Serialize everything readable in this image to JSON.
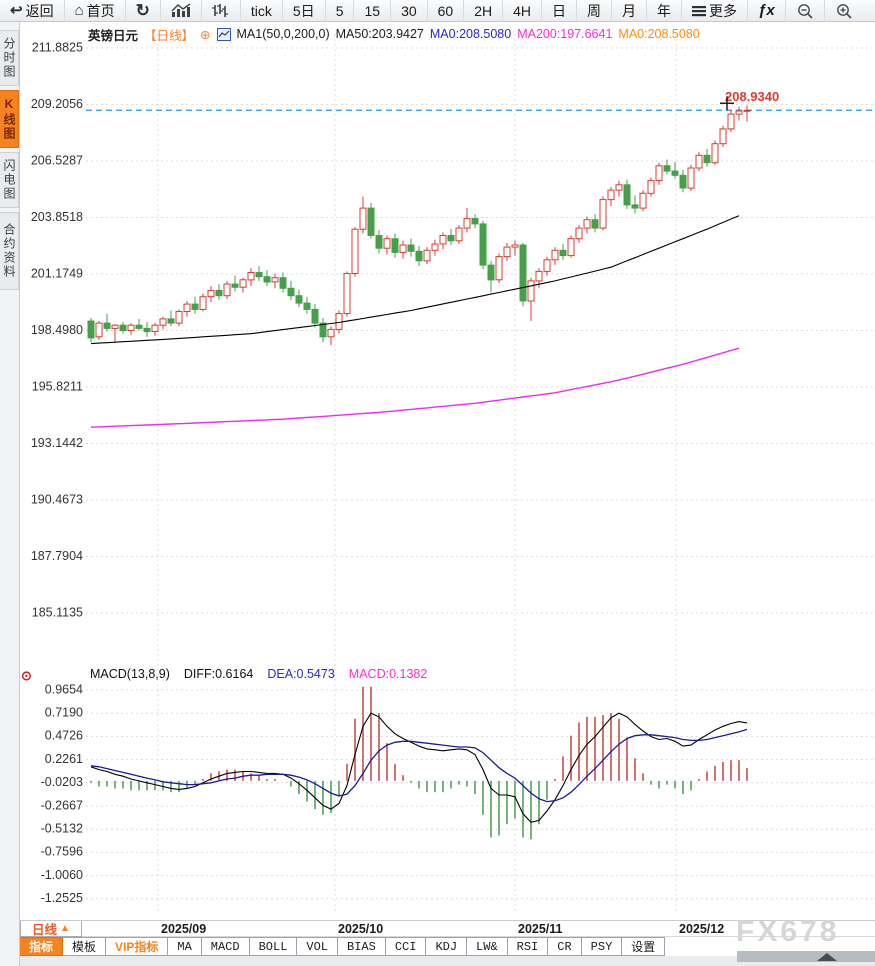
{
  "toolbar": {
    "items": [
      {
        "name": "back",
        "icon": "back-arrow",
        "label": "返回"
      },
      {
        "name": "home",
        "icon": "home",
        "label": "首页"
      },
      {
        "name": "refresh",
        "icon": "refresh",
        "label": ""
      },
      {
        "name": "trend-chart",
        "icon": "bar-chart",
        "label": ""
      },
      {
        "name": "kline-bars",
        "icon": "ohlc-bars",
        "label": ""
      },
      {
        "name": "tick",
        "icon": "",
        "label": "tick"
      },
      {
        "name": "5d",
        "icon": "",
        "label": "5日"
      },
      {
        "name": "m5",
        "icon": "",
        "label": "5"
      },
      {
        "name": "m15",
        "icon": "",
        "label": "15"
      },
      {
        "name": "m30",
        "icon": "",
        "label": "30"
      },
      {
        "name": "m60",
        "icon": "",
        "label": "60"
      },
      {
        "name": "h2",
        "icon": "",
        "label": "2H"
      },
      {
        "name": "h4",
        "icon": "",
        "label": "4H"
      },
      {
        "name": "day",
        "icon": "",
        "label": "日"
      },
      {
        "name": "week",
        "icon": "",
        "label": "周"
      },
      {
        "name": "month",
        "icon": "",
        "label": "月"
      },
      {
        "name": "year",
        "icon": "",
        "label": "年"
      },
      {
        "name": "more",
        "icon": "menu",
        "label": "更多"
      },
      {
        "name": "fx",
        "icon": "fx",
        "label": "fx"
      },
      {
        "name": "zoom-out",
        "icon": "zoom-out",
        "label": ""
      },
      {
        "name": "zoom-in",
        "icon": "zoom-in",
        "label": ""
      }
    ]
  },
  "sidebar": {
    "items": [
      {
        "label": "分时图",
        "active": false
      },
      {
        "label": "K线图",
        "active": true
      },
      {
        "label": "闪电图",
        "active": false
      },
      {
        "label": "合约资料",
        "active": false
      }
    ]
  },
  "chart_header": {
    "symbol": "英镑日元",
    "period_tag": "【日线】",
    "plus": "⊕",
    "ma_settings": "MA1(50,0,200,0)",
    "ma50": "MA50:203.9427",
    "ma0_blue": "MA0:208.5080",
    "ma200": "MA200:197.6641",
    "ma0_orange": "MA0:208.5080"
  },
  "macd_header": {
    "title": "MACD(13,8,9)",
    "diff": "DIFF:0.6164",
    "dea": "DEA:0.5473",
    "macd": "MACD:0.1382"
  },
  "bottom": {
    "period_label": "日线",
    "period_arrow": "▲",
    "watermark": "FX678",
    "months": [
      "2025/09",
      "2025/10",
      "2025/11",
      "2025/12"
    ],
    "tabs": [
      {
        "label": "指标",
        "variant": "active"
      },
      {
        "label": "模板",
        "variant": "plain"
      },
      {
        "label": "VIP指标",
        "variant": "vip"
      },
      {
        "label": "MA",
        "variant": "box"
      },
      {
        "label": "MACD",
        "variant": "box"
      },
      {
        "label": "BOLL",
        "variant": "box"
      },
      {
        "label": "VOL",
        "variant": "box"
      },
      {
        "label": "BIAS",
        "variant": "box"
      },
      {
        "label": "CCI",
        "variant": "box"
      },
      {
        "label": "KDJ",
        "variant": "box"
      },
      {
        "label": "LW&",
        "variant": "box"
      },
      {
        "label": "RSI",
        "variant": "box"
      },
      {
        "label": "CR",
        "variant": "box"
      },
      {
        "label": "PSY",
        "variant": "box"
      },
      {
        "label": "设置",
        "variant": "box"
      }
    ]
  },
  "colors": {
    "up": "#dd3b32",
    "down": "#44a049",
    "ma50": "#000000",
    "ma200": "#ee2bee",
    "diff": "#000000",
    "dea": "#1c1c96",
    "hist_up": "#c4514a",
    "hist_down": "#55a05a",
    "grid": "#dcdcdc",
    "last_price_line": "#2196f3",
    "last_price_text": "#e13a30",
    "accent": "#f5831f"
  },
  "chart_data": {
    "type": "candlestick",
    "title": "英镑日元 日线 (GBP/JPY daily) with MA50/MA200 and MACD(13,8,9)",
    "price_axis_labels": [
      "211.8825",
      "209.2056",
      "206.5287",
      "203.8518",
      "201.1749",
      "198.4980",
      "195.8211",
      "193.1442",
      "190.4673",
      "187.7904",
      "185.1135"
    ],
    "macd_axis_labels": [
      "0.9654",
      "0.7190",
      "0.4726",
      "0.2261",
      "-0.0203",
      "-0.2667",
      "-0.5132",
      "-0.7596",
      "-1.0060",
      "-1.2525"
    ],
    "x_months": [
      "2025/09",
      "2025/10",
      "2025/11",
      "2025/12"
    ],
    "last_price": 208.934,
    "last_price_label": "208.9340",
    "ma50_last": 203.9427,
    "ma200_last": 197.6641,
    "diff_last": 0.6164,
    "dea_last": 0.5473,
    "macd_hist_last": 0.1382,
    "candles": [
      [
        198.95,
        199.1,
        197.95,
        198.15
      ],
      [
        198.2,
        198.95,
        198.05,
        198.85
      ],
      [
        198.85,
        199.3,
        198.45,
        198.6
      ],
      [
        198.6,
        198.8,
        197.95,
        198.75
      ],
      [
        198.75,
        198.9,
        198.35,
        198.5
      ],
      [
        198.5,
        198.85,
        198.3,
        198.75
      ],
      [
        198.75,
        199.05,
        198.5,
        198.6
      ],
      [
        198.6,
        198.9,
        198.2,
        198.45
      ],
      [
        198.45,
        198.85,
        198.25,
        198.75
      ],
      [
        198.75,
        199.15,
        198.55,
        199.05
      ],
      [
        199.05,
        199.45,
        198.7,
        198.85
      ],
      [
        198.85,
        199.5,
        198.7,
        199.4
      ],
      [
        199.4,
        199.9,
        199.15,
        199.75
      ],
      [
        199.75,
        200.1,
        199.3,
        199.5
      ],
      [
        199.5,
        200.25,
        199.4,
        200.1
      ],
      [
        200.1,
        200.6,
        199.85,
        200.4
      ],
      [
        200.4,
        200.7,
        199.95,
        200.15
      ],
      [
        200.15,
        200.85,
        200.0,
        200.7
      ],
      [
        200.7,
        201.1,
        200.35,
        200.55
      ],
      [
        200.55,
        201.0,
        200.3,
        200.9
      ],
      [
        200.9,
        201.45,
        200.6,
        201.25
      ],
      [
        201.25,
        201.55,
        200.85,
        201.05
      ],
      [
        201.05,
        201.35,
        200.6,
        200.8
      ],
      [
        200.8,
        201.2,
        200.5,
        201.0
      ],
      [
        201.0,
        201.25,
        200.3,
        200.5
      ],
      [
        200.5,
        200.85,
        199.95,
        200.15
      ],
      [
        200.15,
        200.45,
        199.6,
        199.8
      ],
      [
        199.8,
        200.1,
        199.3,
        199.5
      ],
      [
        199.5,
        199.75,
        198.65,
        198.85
      ],
      [
        198.85,
        199.1,
        197.95,
        198.2
      ],
      [
        198.2,
        198.7,
        197.8,
        198.55
      ],
      [
        198.55,
        199.45,
        198.35,
        199.3
      ],
      [
        199.3,
        201.3,
        199.15,
        201.2
      ],
      [
        201.2,
        203.4,
        201.05,
        203.3
      ],
      [
        203.3,
        204.85,
        203.1,
        204.3
      ],
      [
        204.3,
        204.55,
        202.85,
        203.0
      ],
      [
        203.0,
        203.25,
        202.15,
        202.4
      ],
      [
        202.4,
        203.0,
        202.1,
        202.85
      ],
      [
        202.85,
        203.1,
        201.95,
        202.2
      ],
      [
        202.2,
        202.75,
        201.9,
        202.55
      ],
      [
        202.55,
        202.85,
        202.0,
        202.25
      ],
      [
        202.25,
        202.5,
        201.55,
        201.8
      ],
      [
        201.8,
        202.45,
        201.65,
        202.3
      ],
      [
        202.3,
        202.8,
        202.05,
        202.6
      ],
      [
        202.6,
        203.15,
        202.35,
        203.0
      ],
      [
        203.0,
        203.3,
        202.55,
        202.75
      ],
      [
        202.75,
        203.5,
        202.6,
        203.35
      ],
      [
        203.35,
        204.3,
        203.15,
        203.8
      ],
      [
        203.8,
        204.0,
        203.35,
        203.55
      ],
      [
        203.55,
        203.7,
        201.4,
        201.6
      ],
      [
        201.6,
        201.8,
        200.3,
        200.9
      ],
      [
        200.9,
        202.15,
        200.75,
        202.0
      ],
      [
        202.0,
        202.65,
        201.8,
        202.45
      ],
      [
        202.45,
        202.75,
        202.05,
        202.55
      ],
      [
        202.55,
        202.65,
        199.65,
        199.9
      ],
      [
        199.9,
        201.0,
        198.95,
        200.85
      ],
      [
        200.85,
        201.45,
        200.5,
        201.3
      ],
      [
        201.3,
        202.0,
        201.1,
        201.85
      ],
      [
        201.85,
        202.45,
        201.6,
        202.3
      ],
      [
        202.3,
        202.6,
        201.85,
        202.05
      ],
      [
        202.05,
        203.0,
        201.95,
        202.85
      ],
      [
        202.85,
        203.5,
        202.65,
        203.35
      ],
      [
        203.35,
        203.9,
        203.1,
        203.75
      ],
      [
        203.75,
        204.0,
        203.15,
        203.35
      ],
      [
        203.35,
        204.85,
        203.25,
        204.7
      ],
      [
        204.7,
        205.3,
        204.4,
        205.15
      ],
      [
        205.15,
        205.6,
        204.85,
        205.4
      ],
      [
        205.4,
        205.65,
        204.25,
        204.45
      ],
      [
        204.45,
        204.9,
        204.05,
        204.3
      ],
      [
        204.3,
        205.15,
        204.15,
        205.0
      ],
      [
        205.0,
        205.75,
        204.85,
        205.6
      ],
      [
        205.6,
        206.45,
        205.4,
        206.3
      ],
      [
        206.3,
        206.6,
        205.9,
        206.05
      ],
      [
        206.05,
        206.5,
        205.7,
        205.85
      ],
      [
        205.85,
        206.1,
        205.05,
        205.25
      ],
      [
        205.25,
        206.35,
        205.1,
        206.2
      ],
      [
        206.2,
        206.95,
        206.05,
        206.8
      ],
      [
        206.8,
        207.1,
        206.25,
        206.45
      ],
      [
        206.45,
        207.5,
        206.35,
        207.35
      ],
      [
        207.35,
        208.2,
        207.2,
        208.05
      ],
      [
        208.05,
        208.95,
        207.9,
        208.75
      ],
      [
        208.75,
        209.1,
        208.45,
        208.9
      ],
      [
        208.9,
        209.15,
        208.4,
        208.93
      ]
    ],
    "ma50_anchors": [
      [
        0,
        197.88
      ],
      [
        10,
        198.1
      ],
      [
        20,
        198.35
      ],
      [
        31,
        198.88
      ],
      [
        40,
        199.45
      ],
      [
        51,
        200.3
      ],
      [
        58,
        200.85
      ],
      [
        65,
        201.5
      ],
      [
        72,
        202.55
      ],
      [
        77,
        203.3
      ],
      [
        81,
        203.94
      ]
    ],
    "ma200_anchors": [
      [
        0,
        193.92
      ],
      [
        12,
        194.1
      ],
      [
        24,
        194.3
      ],
      [
        36,
        194.62
      ],
      [
        48,
        195.05
      ],
      [
        58,
        195.55
      ],
      [
        66,
        196.15
      ],
      [
        74,
        196.9
      ],
      [
        81,
        197.66
      ]
    ],
    "diff": [
      0.15,
      0.12,
      0.1,
      0.07,
      0.05,
      0.02,
      0.0,
      -0.02,
      -0.04,
      -0.06,
      -0.08,
      -0.09,
      -0.08,
      -0.06,
      -0.02,
      0.02,
      0.05,
      0.08,
      0.09,
      0.1,
      0.1,
      0.09,
      0.08,
      0.08,
      0.07,
      0.03,
      -0.03,
      -0.1,
      -0.18,
      -0.26,
      -0.3,
      -0.24,
      -0.05,
      0.28,
      0.58,
      0.72,
      0.68,
      0.58,
      0.5,
      0.45,
      0.41,
      0.37,
      0.34,
      0.33,
      0.32,
      0.33,
      0.34,
      0.33,
      0.28,
      0.12,
      -0.08,
      -0.15,
      -0.15,
      -0.17,
      -0.35,
      -0.44,
      -0.42,
      -0.32,
      -0.2,
      -0.05,
      0.12,
      0.27,
      0.39,
      0.47,
      0.57,
      0.67,
      0.72,
      0.68,
      0.6,
      0.53,
      0.47,
      0.44,
      0.45,
      0.42,
      0.37,
      0.38,
      0.44,
      0.49,
      0.54,
      0.58,
      0.61,
      0.63,
      0.6164
    ],
    "dea": [
      0.16,
      0.15,
      0.13,
      0.11,
      0.09,
      0.07,
      0.05,
      0.03,
      0.01,
      -0.01,
      -0.02,
      -0.03,
      -0.04,
      -0.04,
      -0.03,
      -0.02,
      0.0,
      0.02,
      0.03,
      0.05,
      0.06,
      0.06,
      0.07,
      0.07,
      0.07,
      0.06,
      0.04,
      0.01,
      -0.03,
      -0.08,
      -0.13,
      -0.16,
      -0.14,
      -0.05,
      0.08,
      0.22,
      0.32,
      0.38,
      0.41,
      0.42,
      0.42,
      0.41,
      0.4,
      0.39,
      0.38,
      0.37,
      0.36,
      0.36,
      0.35,
      0.3,
      0.22,
      0.14,
      0.08,
      0.03,
      -0.05,
      -0.13,
      -0.19,
      -0.22,
      -0.21,
      -0.18,
      -0.12,
      -0.04,
      0.05,
      0.13,
      0.22,
      0.31,
      0.39,
      0.45,
      0.48,
      0.49,
      0.49,
      0.48,
      0.47,
      0.46,
      0.44,
      0.43,
      0.43,
      0.44,
      0.46,
      0.48,
      0.5,
      0.52,
      0.5473
    ]
  }
}
